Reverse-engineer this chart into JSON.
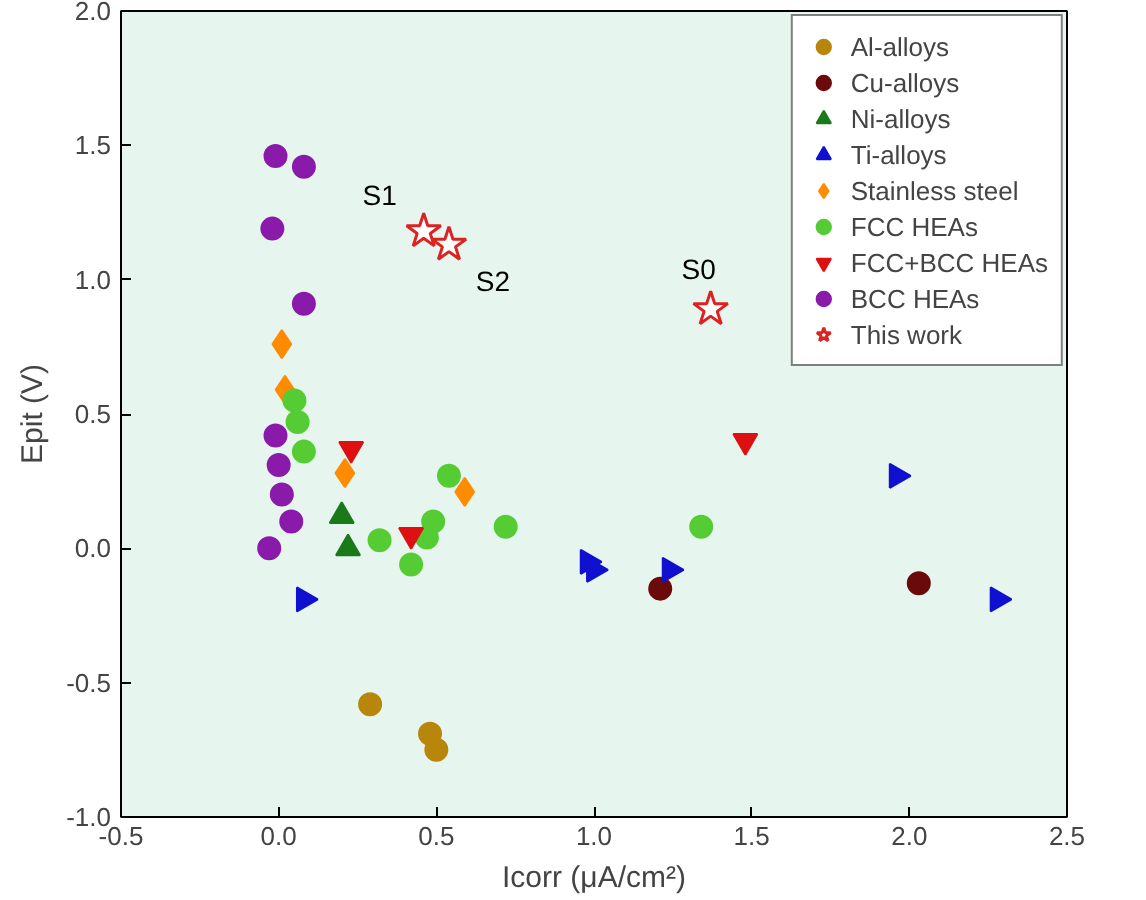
{
  "chart_data": {
    "type": "scatter",
    "xlabel": "Icorr (μA/cm²)",
    "ylabel": "Epit (V)",
    "xlim": [
      -0.5,
      2.5
    ],
    "ylim": [
      -1.0,
      2.0
    ],
    "xticks": [
      {
        "value": -0.5,
        "label": "-0.5"
      },
      {
        "value": 0,
        "label": "0.0"
      },
      {
        "value": 0.5,
        "label": "0.5"
      },
      {
        "value": 1,
        "label": "1.0"
      },
      {
        "value": 1.5,
        "label": "1.5"
      },
      {
        "value": 2,
        "label": "2.0"
      },
      {
        "value": 2.5,
        "label": "2.5"
      }
    ],
    "yticks": [
      {
        "value": -1,
        "label": "-1.0"
      },
      {
        "value": -0.5,
        "label": "-0.5"
      },
      {
        "value": 0,
        "label": "0.0"
      },
      {
        "value": 0.5,
        "label": "0.5"
      },
      {
        "value": 1,
        "label": "1.0"
      },
      {
        "value": 1.5,
        "label": "1.5"
      },
      {
        "value": 2,
        "label": "2.0"
      }
    ],
    "grid": false,
    "legend": "top right",
    "series": [
      {
        "name": "Al-alloys",
        "color": "#b8860b",
        "marker": "circle",
        "x": [
          0.29,
          0.48,
          0.5
        ],
        "values": [
          -0.58,
          -0.69,
          -0.75
        ]
      },
      {
        "name": "Cu-alloys",
        "color": "#6b0a0a",
        "marker": "circle",
        "x": [
          1.21,
          2.03
        ],
        "values": [
          -0.15,
          -0.13
        ]
      },
      {
        "name": "Ni-alloys",
        "color": "#1a7a1a",
        "marker": "triangle",
        "x": [
          0.2,
          0.22
        ],
        "values": [
          0.12,
          0.0
        ]
      },
      {
        "name": "Ti-alloys",
        "color": "#1010d0",
        "marker": "triangle-right",
        "x": [
          0.08,
          0.98,
          1.0,
          1.24,
          1.96,
          2.28
        ],
        "values": [
          -0.19,
          -0.05,
          -0.08,
          -0.08,
          0.27,
          -0.19
        ]
      },
      {
        "name": "Stainless steel",
        "color": "#ff8c00",
        "marker": "diamond",
        "x": [
          0.01,
          0.02,
          0.21,
          0.59
        ],
        "values": [
          0.76,
          0.59,
          0.28,
          0.21
        ]
      },
      {
        "name": "FCC HEAs",
        "color": "#55cc33",
        "marker": "circle",
        "x": [
          0.05,
          0.06,
          0.08,
          0.54,
          0.49,
          0.72,
          0.47,
          0.42,
          0.32,
          1.34
        ],
        "values": [
          0.55,
          0.47,
          0.36,
          0.27,
          0.1,
          0.08,
          0.04,
          -0.06,
          0.03,
          0.08
        ]
      },
      {
        "name": "FCC+BCC HEAs",
        "color": "#dd1111",
        "marker": "triangle-down",
        "x": [
          0.23,
          1.48,
          0.42
        ],
        "values": [
          0.37,
          0.4,
          0.05
        ]
      },
      {
        "name": "BCC HEAs",
        "color": "#8a1aaa",
        "marker": "circle",
        "x": [
          -0.01,
          0.08,
          -0.02,
          0.08,
          -0.01,
          0.0,
          0.01,
          0.04,
          -0.03
        ],
        "values": [
          1.46,
          1.42,
          1.19,
          0.91,
          0.42,
          0.31,
          0.2,
          0.1,
          0.0
        ]
      },
      {
        "name": "This work",
        "color": "#dd2222",
        "marker": "star",
        "x": [
          0.46,
          0.54,
          1.37
        ],
        "values": [
          1.18,
          1.13,
          0.89
        ]
      }
    ],
    "annotations": [
      {
        "text": "S1",
        "x": 0.46,
        "y": 1.18
      },
      {
        "text": "S2",
        "x": 0.54,
        "y": 1.13
      },
      {
        "text": "S0",
        "x": 1.37,
        "y": 0.89
      }
    ]
  }
}
